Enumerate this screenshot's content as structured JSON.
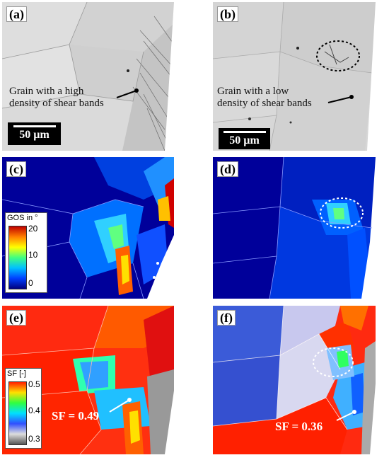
{
  "panels": {
    "a": {
      "label": "(a)",
      "note_line1": "Grain with a high",
      "note_line2": "density of shear bands",
      "scale": "50 µm"
    },
    "b": {
      "label": "(b)",
      "note_line1": "Grain with a low",
      "note_line2": "density of shear bands",
      "scale": "50 µm"
    },
    "c": {
      "label": "(c)",
      "legend_title": "GOS in °",
      "ticks": [
        "20",
        "10",
        "0"
      ]
    },
    "d": {
      "label": "(d)"
    },
    "e": {
      "label": "(e)",
      "legend_title": "SF [-]",
      "ticks": [
        "0.5",
        "0.4",
        "0.3"
      ],
      "value_label": "SF = 0.49"
    },
    "f": {
      "label": "(f)",
      "value_label": "SF = 0.36"
    }
  },
  "colors": {
    "gos_scale": [
      "#00007f",
      "#0040ff",
      "#00c0ff",
      "#40ff80",
      "#ffff00",
      "#ff8000",
      "#c00000"
    ],
    "sf_scale": [
      "#555555",
      "#dddddd",
      "#3050ff",
      "#00e0ff",
      "#30ff40",
      "#ffe000",
      "#ff2000"
    ]
  }
}
